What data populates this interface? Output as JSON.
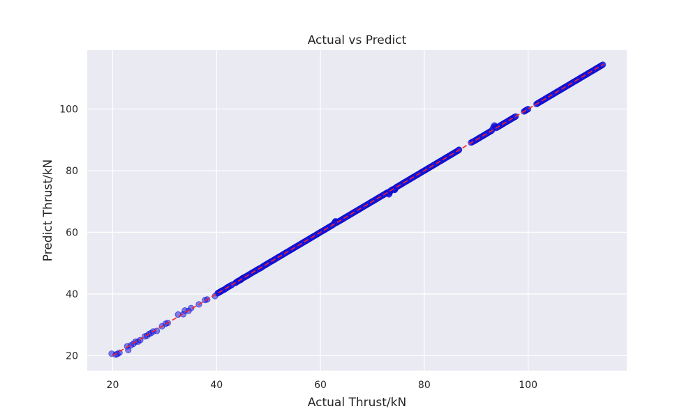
{
  "chart_data": {
    "type": "scatter",
    "title": "Actual vs Predict",
    "xlabel": "Actual Thrust/kN",
    "ylabel": "Predict Thrust/kN",
    "xlim": [
      15.1,
      119.0
    ],
    "ylim": [
      15.1,
      119.1
    ],
    "xticks": [
      20,
      40,
      60,
      80,
      100
    ],
    "yticks": [
      20,
      40,
      60,
      80,
      100
    ],
    "grid": true,
    "background": "#EAEAF2",
    "grid_color": "#FFFFFF",
    "point_color": "#1F1FE0",
    "point_edge_color": "#0000CC",
    "point_alpha": 0.55,
    "line_color": "#FF2020",
    "line_style": "dashed",
    "reference_line": {
      "from": [
        20,
        20
      ],
      "to": [
        114.5,
        114.5
      ]
    },
    "series": [
      {
        "type": "scatter",
        "points": [
          [
            19.8,
            20.6
          ],
          [
            20.6,
            20.3
          ],
          [
            20.9,
            20.5
          ],
          [
            21.3,
            20.9
          ],
          [
            22.8,
            23.0
          ],
          [
            23.0,
            21.8
          ],
          [
            23.5,
            23.3
          ],
          [
            24.0,
            23.8
          ],
          [
            24.4,
            24.5
          ],
          [
            24.9,
            24.5
          ],
          [
            25.3,
            25.0
          ],
          [
            26.2,
            26.2
          ],
          [
            26.6,
            26.4
          ],
          [
            27.0,
            27.0
          ],
          [
            27.4,
            27.3
          ],
          [
            27.8,
            27.8
          ],
          [
            28.5,
            28.0
          ],
          [
            29.5,
            29.5
          ],
          [
            30.2,
            30.3
          ],
          [
            30.6,
            30.6
          ],
          [
            32.6,
            33.3
          ],
          [
            33.6,
            33.4
          ],
          [
            33.9,
            34.6
          ],
          [
            34.6,
            34.5
          ],
          [
            35.1,
            35.4
          ],
          [
            36.6,
            36.6
          ],
          [
            37.8,
            38.0
          ],
          [
            38.2,
            38.2
          ],
          [
            39.7,
            39.3
          ],
          [
            40.2,
            40.2
          ],
          [
            40.6,
            40.6
          ],
          [
            41.0,
            41.0
          ],
          [
            41.5,
            41.4
          ],
          [
            42.0,
            42.0
          ],
          [
            42.5,
            42.5
          ],
          [
            43.0,
            43.0
          ],
          [
            43.6,
            43.5
          ],
          [
            44.0,
            44.0
          ],
          [
            44.3,
            44.3
          ],
          [
            44.7,
            44.6
          ],
          [
            45.0,
            45.1
          ],
          [
            45.5,
            45.5
          ],
          [
            46.0,
            46.0
          ],
          [
            46.5,
            46.5
          ],
          [
            47.0,
            47.0
          ],
          [
            47.5,
            47.5
          ],
          [
            48.0,
            48.0
          ],
          [
            48.5,
            48.4
          ],
          [
            49.0,
            49.0
          ],
          [
            49.5,
            49.5
          ],
          [
            50.0,
            50.0
          ],
          [
            50.5,
            50.5
          ],
          [
            51.0,
            51.0
          ],
          [
            51.5,
            51.5
          ],
          [
            52.0,
            52.0
          ],
          [
            52.5,
            52.5
          ],
          [
            53.0,
            53.0
          ],
          [
            53.5,
            53.5
          ],
          [
            54.0,
            54.0
          ],
          [
            54.5,
            54.5
          ],
          [
            55.0,
            55.0
          ],
          [
            55.5,
            55.5
          ],
          [
            56.0,
            56.0
          ],
          [
            56.5,
            56.5
          ],
          [
            57.0,
            57.0
          ],
          [
            57.5,
            57.5
          ],
          [
            58.0,
            58.0
          ],
          [
            58.5,
            58.5
          ],
          [
            59.0,
            59.0
          ],
          [
            59.5,
            59.5
          ],
          [
            60.0,
            60.0
          ],
          [
            60.5,
            60.5
          ],
          [
            61.0,
            61.0
          ],
          [
            61.5,
            61.5
          ],
          [
            62.0,
            62.0
          ],
          [
            62.5,
            62.5
          ],
          [
            62.9,
            63.6
          ],
          [
            63.0,
            63.0
          ],
          [
            63.5,
            63.5
          ],
          [
            64.0,
            64.0
          ],
          [
            64.5,
            64.5
          ],
          [
            65.0,
            65.0
          ],
          [
            65.5,
            65.5
          ],
          [
            66.0,
            66.0
          ],
          [
            66.5,
            66.5
          ],
          [
            67.0,
            67.0
          ],
          [
            67.5,
            67.5
          ],
          [
            68.0,
            68.0
          ],
          [
            68.5,
            68.5
          ],
          [
            69.0,
            69.0
          ],
          [
            69.5,
            69.5
          ],
          [
            70.0,
            70.0
          ],
          [
            70.5,
            70.5
          ],
          [
            71.0,
            71.0
          ],
          [
            71.5,
            71.5
          ],
          [
            72.0,
            72.0
          ],
          [
            72.5,
            72.5
          ],
          [
            73.0,
            73.0
          ],
          [
            73.2,
            72.3
          ],
          [
            73.5,
            73.5
          ],
          [
            74.0,
            74.0
          ],
          [
            74.3,
            73.7
          ],
          [
            74.5,
            74.5
          ],
          [
            75.0,
            75.0
          ],
          [
            75.5,
            75.5
          ],
          [
            76.0,
            76.0
          ],
          [
            76.5,
            76.5
          ],
          [
            77.0,
            77.0
          ],
          [
            77.5,
            77.5
          ],
          [
            78.0,
            78.0
          ],
          [
            78.5,
            78.5
          ],
          [
            79.0,
            79.0
          ],
          [
            79.5,
            79.5
          ],
          [
            80.0,
            80.0
          ],
          [
            80.5,
            80.5
          ],
          [
            81.0,
            81.0
          ],
          [
            81.5,
            81.5
          ],
          [
            82.0,
            82.0
          ],
          [
            82.5,
            82.5
          ],
          [
            83.0,
            83.0
          ],
          [
            83.5,
            83.5
          ],
          [
            84.0,
            84.0
          ],
          [
            84.5,
            84.5
          ],
          [
            85.0,
            85.0
          ],
          [
            85.5,
            85.5
          ],
          [
            86.0,
            86.0
          ],
          [
            86.5,
            86.5
          ],
          [
            86.7,
            86.8
          ],
          [
            89.0,
            89.1
          ],
          [
            89.5,
            89.5
          ],
          [
            90.0,
            90.0
          ],
          [
            90.5,
            90.5
          ],
          [
            91.0,
            91.0
          ],
          [
            91.5,
            91.5
          ],
          [
            92.0,
            92.0
          ],
          [
            92.5,
            92.5
          ],
          [
            93.0,
            93.0
          ],
          [
            93.5,
            94.7
          ],
          [
            93.8,
            93.8
          ],
          [
            94.3,
            94.3
          ],
          [
            94.8,
            94.8
          ],
          [
            95.3,
            95.3
          ],
          [
            95.8,
            95.8
          ],
          [
            96.3,
            96.3
          ],
          [
            96.8,
            96.8
          ],
          [
            97.3,
            97.3
          ],
          [
            97.6,
            97.6
          ],
          [
            99.2,
            99.2
          ],
          [
            99.6,
            99.6
          ],
          [
            100.0,
            100.0
          ],
          [
            101.6,
            101.6
          ],
          [
            102.0,
            102.0
          ],
          [
            102.5,
            102.5
          ],
          [
            103.0,
            103.0
          ],
          [
            103.5,
            103.5
          ],
          [
            104.0,
            104.0
          ],
          [
            104.5,
            104.5
          ],
          [
            105.0,
            105.0
          ],
          [
            105.5,
            105.5
          ],
          [
            106.0,
            106.0
          ],
          [
            106.5,
            106.5
          ],
          [
            107.0,
            107.0
          ],
          [
            107.5,
            107.5
          ],
          [
            108.0,
            108.0
          ],
          [
            108.5,
            108.5
          ],
          [
            109.0,
            109.0
          ],
          [
            109.5,
            109.5
          ],
          [
            110.0,
            110.0
          ],
          [
            110.5,
            110.5
          ],
          [
            111.0,
            111.0
          ],
          [
            111.5,
            111.5
          ],
          [
            112.0,
            112.0
          ],
          [
            112.5,
            112.5
          ],
          [
            113.0,
            113.0
          ],
          [
            113.5,
            113.5
          ],
          [
            114.0,
            114.0
          ],
          [
            114.4,
            114.4
          ]
        ]
      }
    ]
  }
}
